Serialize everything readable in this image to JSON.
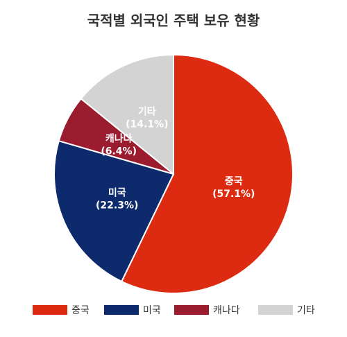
{
  "chart_data": {
    "type": "pie",
    "title": "국적별 외국인 주택 보유 현황",
    "categories": [
      "중국",
      "미국",
      "캐나다",
      "기타"
    ],
    "values": [
      57.1,
      22.3,
      6.4,
      14.1
    ],
    "value_labels": [
      "(57.1%)",
      "(22.3%)",
      "(6.4%)",
      "(14.1%)"
    ],
    "colors": [
      "#dc2b10",
      "#0d2a6c",
      "#9b1c2f",
      "#d3d3d3"
    ]
  }
}
